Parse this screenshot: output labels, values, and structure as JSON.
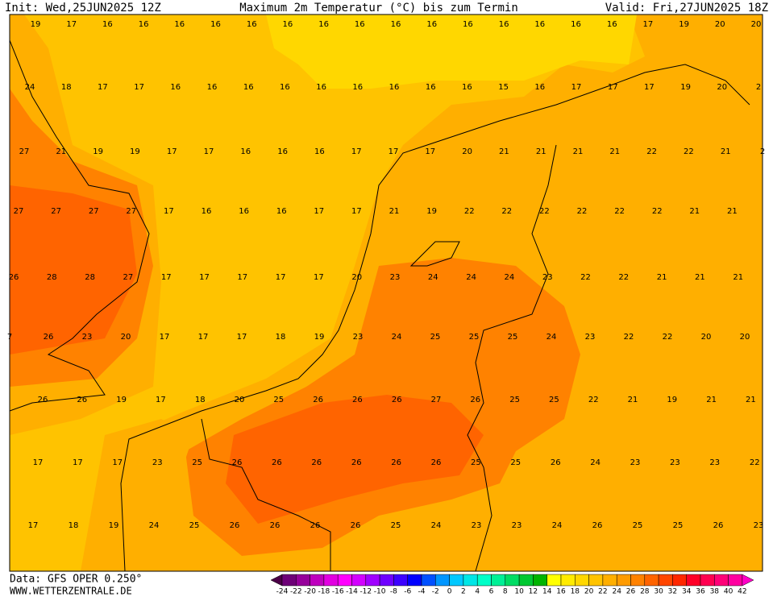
{
  "header": {
    "init": "Init: Wed,25JUN2025 12Z",
    "title": "Maximum 2m Temperatur (°C) bis zum Termin",
    "valid": "Valid: Fri,27JUN2025 18Z"
  },
  "footer": {
    "data": "Data: GFS OPER 0.250°",
    "site": "WWW.WETTERZENTRALE.DE"
  },
  "map": {
    "rows": [
      [
        19,
        17,
        16,
        16,
        16,
        16,
        16,
        16,
        16,
        16,
        16,
        16,
        16,
        16,
        16,
        16,
        16,
        17,
        19,
        20,
        20
      ],
      [
        24,
        18,
        17,
        17,
        16,
        16,
        16,
        16,
        16,
        16,
        16,
        16,
        16,
        15,
        16,
        17,
        17,
        17,
        19,
        20,
        2
      ],
      [
        27,
        21,
        19,
        19,
        17,
        17,
        16,
        16,
        16,
        17,
        17,
        17,
        20,
        21,
        21,
        21,
        21,
        22,
        22,
        21,
        2
      ],
      [
        27,
        27,
        27,
        27,
        17,
        16,
        16,
        16,
        17,
        17,
        21,
        19,
        22,
        22,
        22,
        22,
        22,
        22,
        21,
        21
      ],
      [
        26,
        28,
        28,
        27,
        17,
        17,
        17,
        17,
        17,
        20,
        23,
        24,
        24,
        24,
        23,
        22,
        22,
        21,
        21,
        21
      ],
      [
        7,
        26,
        23,
        20,
        17,
        17,
        17,
        18,
        19,
        23,
        24,
        25,
        25,
        25,
        24,
        23,
        22,
        22,
        20,
        20
      ],
      [
        26,
        26,
        19,
        17,
        18,
        20,
        25,
        26,
        26,
        26,
        27,
        26,
        25,
        25,
        22,
        21,
        19,
        21,
        21
      ],
      [
        17,
        17,
        17,
        23,
        25,
        26,
        26,
        26,
        26,
        26,
        26,
        25,
        25,
        26,
        24,
        23,
        23,
        23,
        22
      ],
      [
        17,
        18,
        19,
        24,
        25,
        26,
        26,
        26,
        26,
        25,
        24,
        23,
        23,
        24,
        26,
        25,
        25,
        26,
        23
      ]
    ]
  },
  "colorbar": {
    "labels": [
      -24,
      -22,
      -20,
      -18,
      -16,
      -14,
      -12,
      -10,
      -8,
      -6,
      -4,
      -2,
      0,
      2,
      4,
      6,
      8,
      10,
      12,
      14,
      16,
      18,
      20,
      22,
      24,
      26,
      28,
      30,
      32,
      34,
      36,
      38,
      40,
      42
    ],
    "colors": [
      "#4b0046",
      "#6e0078",
      "#96009b",
      "#be00be",
      "#e100e1",
      "#ff00ff",
      "#d200ff",
      "#a000ff",
      "#6e00ff",
      "#3c00ff",
      "#0000ff",
      "#0050ff",
      "#0096ff",
      "#00c8ff",
      "#00e6e6",
      "#00ffc8",
      "#00f096",
      "#00dc64",
      "#00c832",
      "#00b400",
      "#ffff00",
      "#ffeb00",
      "#ffd700",
      "#ffc300",
      "#ffaf00",
      "#ff9b00",
      "#ff8200",
      "#ff6400",
      "#ff4600",
      "#ff2800",
      "#ff0028",
      "#ff0050",
      "#ff0078",
      "#ff00a0",
      "#ff00c8"
    ]
  }
}
